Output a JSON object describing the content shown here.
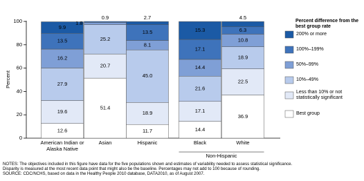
{
  "chart_data": {
    "type": "stacked_bar",
    "y_label": "Percent",
    "categories": [
      "American Indian or Alaska Native",
      "Asian",
      "Hispanic",
      "Black",
      "White"
    ],
    "group_label": "Non-Hispanic",
    "legend_title": "Percent difference from the best group rate",
    "series": [
      {
        "name": "Best group",
        "color": "#ffffff",
        "values": [
          12.6,
          51.4,
          11.7,
          14.4,
          36.9
        ],
        "value_labels": [
          "12.6",
          "51.4",
          "11.7",
          "14.4",
          "36.9"
        ]
      },
      {
        "name": "Less than 10% or not statistically significant",
        "color": "#e2e9f7",
        "values": [
          19.6,
          20.7,
          18.9,
          17.1,
          22.5
        ],
        "value_labels": [
          "19.6",
          "20.7",
          "18.9",
          "17.1",
          "22.5"
        ]
      },
      {
        "name": "10%–49%",
        "color": "#b8cbec",
        "values": [
          27.9,
          25.2,
          45.0,
          21.6,
          18.9
        ],
        "value_labels": [
          "27.9",
          "25.2",
          "45.0",
          "21.6",
          "18.9"
        ]
      },
      {
        "name": "50%–99%",
        "color": "#7f9fd6",
        "values": [
          16.2,
          1.8,
          8.1,
          14.4,
          10.8
        ],
        "value_labels": [
          "16.2",
          "1.8",
          "8.1",
          "14.4",
          "10.8"
        ]
      },
      {
        "name": "100%–199%",
        "color": "#3e73bb",
        "values": [
          13.5,
          0.9,
          13.5,
          17.1,
          6.3
        ],
        "value_labels": [
          "13.5",
          "0.9",
          "13.5",
          "17.1",
          "6.3"
        ]
      },
      {
        "name": "200% or more",
        "color": "#1b5aa5",
        "values": [
          9.9,
          null,
          2.7,
          15.3,
          4.5
        ],
        "value_labels": [
          "9.9",
          null,
          "2.7",
          "15.3",
          "4.5"
        ]
      }
    ],
    "ylim": [
      0,
      100
    ],
    "yticks": [
      0,
      20,
      40,
      60,
      80,
      100
    ],
    "notes": "NOTES: The objectives included in this figure have data for the five populations shown and estimates of variability needed to assess statistical significance. Disparity is measured at the most recent data point that might also be the baseline. Percentages may not add to 100 because of rounding.",
    "source": "SOURCE: CDC/NCHS, based on data in the Healthy People 2010 database, DATA2010, as of August 2007."
  }
}
